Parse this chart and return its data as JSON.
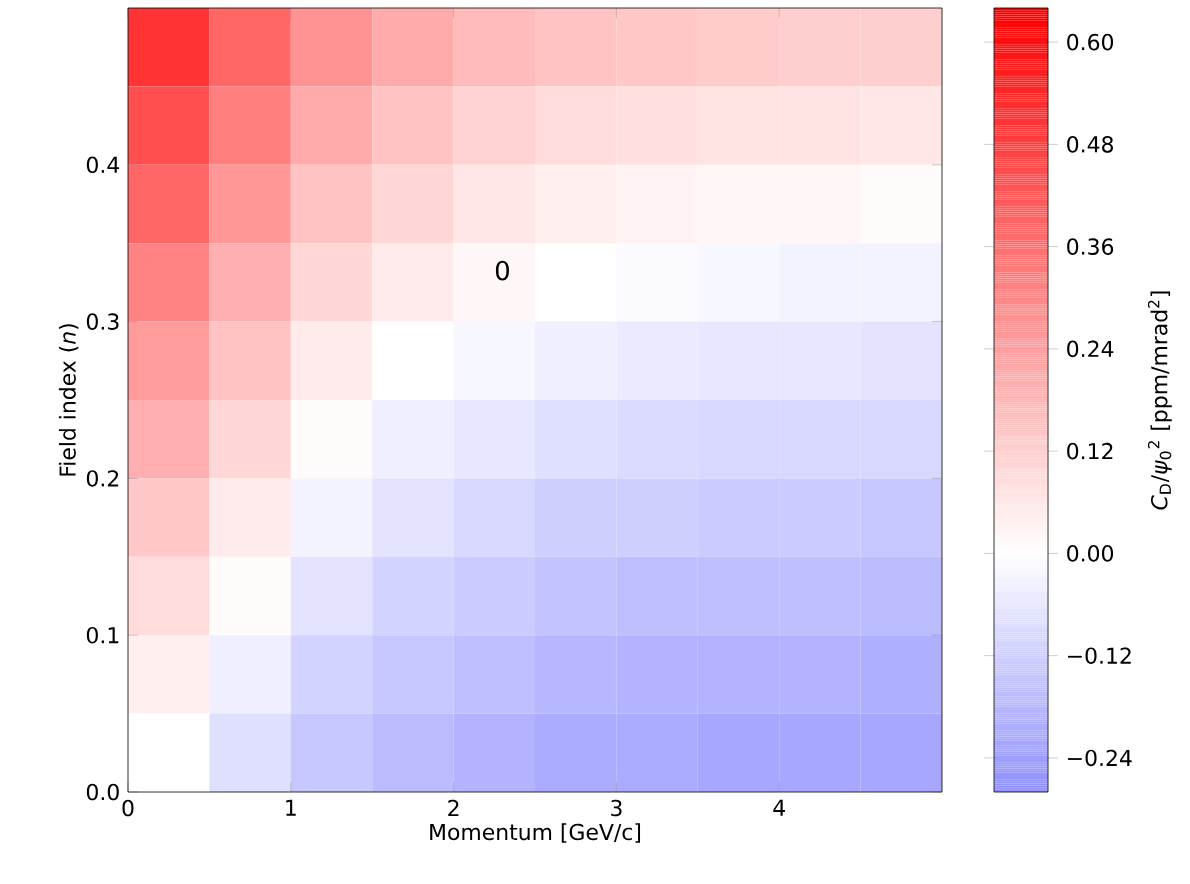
{
  "chart_data": {
    "type": "heatmap",
    "xlabel": "Momentum [GeV/c]",
    "ylabel": "Field index (*n*)",
    "clabel": "*C*$_{D}$/*ψ*$_{0}$$^{2}$ [ppm/mrad$^{2}$]",
    "x": [
      0.25,
      0.75,
      1.25,
      1.75,
      2.25,
      2.75,
      3.25,
      3.75,
      4.25,
      4.75
    ],
    "y": [
      0.475,
      0.425,
      0.375,
      0.325,
      0.275,
      0.225,
      0.175,
      0.125,
      0.075,
      0.025
    ],
    "xlim": [
      0,
      5
    ],
    "ylim": [
      0,
      0.5
    ],
    "xticks": [
      0,
      1,
      2,
      3,
      4
    ],
    "yticks": [
      {
        "value": 0,
        "label": "0.0"
      },
      {
        "value": 0.1,
        "label": "0.1"
      },
      {
        "value": 0.2,
        "label": "0.2"
      },
      {
        "value": 0.3,
        "label": "0.3"
      },
      {
        "value": 0.4,
        "label": "0.4"
      }
    ],
    "clim": [
      -0.28,
      0.64
    ],
    "cticks": [
      {
        "value": -0.24,
        "label": "−0.24"
      },
      {
        "value": -0.12,
        "label": "−0.12"
      },
      {
        "value": 0,
        "label": "0.00"
      },
      {
        "value": 0.12,
        "label": "0.12"
      },
      {
        "value": 0.24,
        "label": "0.24"
      },
      {
        "value": 0.36,
        "label": "0.36"
      },
      {
        "value": 0.48,
        "label": "0.48"
      },
      {
        "value": 0.6,
        "label": "0.60"
      }
    ],
    "cells": [
      [
        0.51,
        0.38,
        0.27,
        0.21,
        0.17,
        0.15,
        0.14,
        0.13,
        0.12,
        0.12
      ],
      [
        0.44,
        0.32,
        0.21,
        0.15,
        0.11,
        0.09,
        0.08,
        0.07,
        0.07,
        0.06
      ],
      [
        0.38,
        0.26,
        0.15,
        0.1,
        0.06,
        0.04,
        0.03,
        0.02,
        0.02,
        0.01
      ],
      [
        0.31,
        0.2,
        0.1,
        0.05,
        0.02,
        0.0,
        -0.01,
        -0.02,
        -0.03,
        -0.03
      ],
      [
        0.25,
        0.15,
        0.05,
        0.0,
        -0.02,
        -0.04,
        -0.05,
        -0.06,
        -0.06,
        -0.07
      ],
      [
        0.2,
        0.1,
        0.01,
        -0.04,
        -0.06,
        -0.08,
        -0.09,
        -0.1,
        -0.1,
        -0.1
      ],
      [
        0.14,
        0.05,
        -0.03,
        -0.07,
        -0.1,
        -0.12,
        -0.12,
        -0.13,
        -0.13,
        -0.14
      ],
      [
        0.09,
        0.01,
        -0.07,
        -0.11,
        -0.13,
        -0.15,
        -0.16,
        -0.16,
        -0.16,
        -0.17
      ],
      [
        0.04,
        -0.04,
        -0.11,
        -0.14,
        -0.16,
        -0.18,
        -0.19,
        -0.19,
        -0.19,
        -0.2
      ],
      [
        0.0,
        -0.08,
        -0.14,
        -0.17,
        -0.19,
        -0.21,
        -0.21,
        -0.22,
        -0.22,
        -0.22
      ]
    ],
    "annotations": [
      "0"
    ],
    "grid": false
  }
}
